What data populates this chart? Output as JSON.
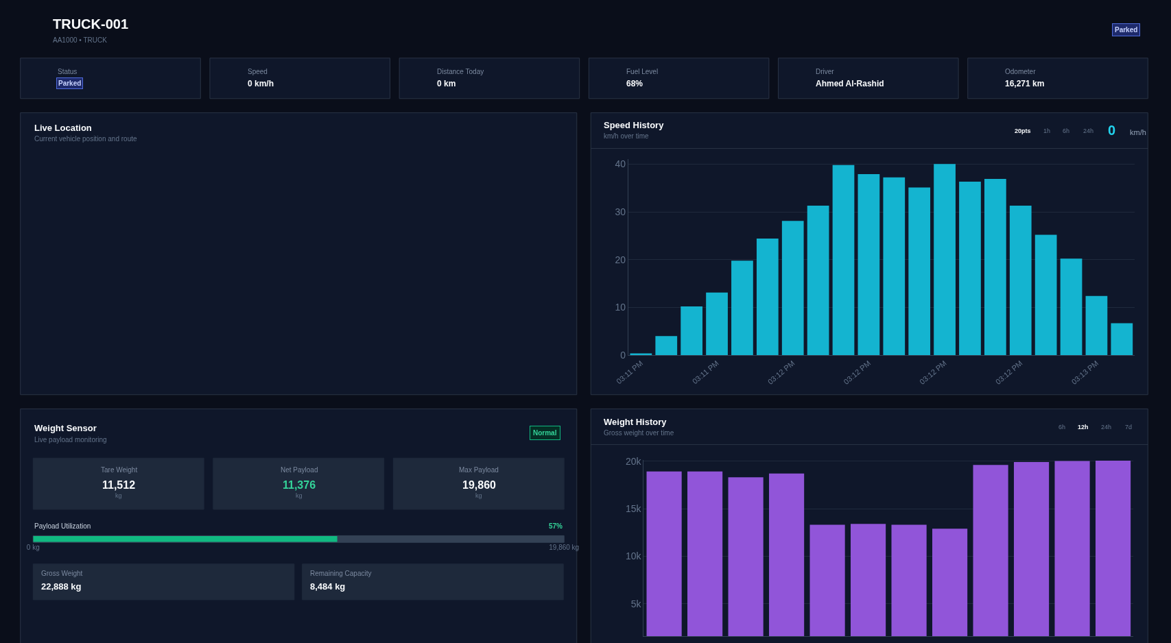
{
  "chart_data": [
    {
      "type": "other",
      "title": "TRUCK-001",
      "subtitle": "AA1000 • TRUCK",
      "annotations": [
        "Parked"
      ]
    },
    {
      "type": "other",
      "annotations": [
        "Status",
        "Parked",
        "Speed",
        "0 km/h",
        "Distance Today",
        "0 km",
        "Fuel Level",
        "68%",
        "Driver",
        "Ahmed Al-Rashid",
        "Odometer",
        "16,271 km"
      ]
    },
    {
      "type": "other",
      "title": "Live Location",
      "subtitle": "Current vehicle position and route"
    },
    {
      "type": "bar",
      "title": "Speed History",
      "subtitle": "km/h over time",
      "annotations": [
        "20pts",
        "1h",
        "6h",
        "24h",
        "0",
        "km/h"
      ],
      "categories": [
        "03:11 PM",
        null,
        null,
        "03:11 PM",
        null,
        null,
        "03:12 PM",
        null,
        null,
        "03:12 PM",
        null,
        null,
        "03:12 PM",
        null,
        null,
        "03:12 PM",
        null,
        null,
        "03:13 PM",
        null
      ],
      "values": [
        0.4,
        4.0,
        10.2,
        13.1,
        19.8,
        24.4,
        28.1,
        31.3,
        39.8,
        37.9,
        37.2,
        35.1,
        40.0,
        36.3,
        36.9,
        31.3,
        25.2,
        20.2,
        12.4,
        6.7
      ],
      "color": "#14b4d0",
      "ylim": [
        0,
        41
      ],
      "yticks": [
        0,
        10,
        20,
        30,
        40
      ],
      "grid": "y"
    },
    {
      "type": "other",
      "title": "Weight Sensor",
      "subtitle": "Live payload monitoring",
      "annotations": [
        "Normal",
        "Tare Weight",
        "11,512",
        "kg",
        "Net Payload",
        "11,376",
        "kg",
        "Max Payload",
        "19,860",
        "kg",
        "Gross Weight",
        "22,888 kg",
        "Remaining Capacity",
        "8,484 kg"
      ]
    },
    {
      "type": "bar",
      "orientation": "horizontal",
      "title": "Payload Utilization",
      "annotations": [
        "57%"
      ],
      "categories": [
        null
      ],
      "values": [
        11376
      ],
      "color": "#10b981",
      "xlim": [
        0,
        19860
      ],
      "xticks": [
        {
          "value": 0,
          "label": "0 kg"
        },
        {
          "value": 19860,
          "label": "19,860 kg"
        }
      ]
    },
    {
      "type": "bar",
      "title": "Weight History",
      "subtitle": "Gross weight over time",
      "annotations": [
        "6h",
        "12h",
        "24h",
        "7d"
      ],
      "categories": [
        null,
        null,
        null,
        null,
        null,
        null,
        null,
        null,
        null,
        null,
        null,
        null
      ],
      "values": [
        18900,
        18900,
        18300,
        18700,
        13300,
        13400,
        13300,
        12900,
        19600,
        19900,
        20000,
        20050
      ],
      "color": "#9155d9",
      "ylim": [
        1600,
        20100
      ],
      "yticks": [
        {
          "value": 5000,
          "label": "5k"
        },
        {
          "value": 10000,
          "label": "10k"
        },
        {
          "value": 15000,
          "label": "15k"
        },
        {
          "value": 20000,
          "label": "20k"
        }
      ],
      "grid": "y"
    }
  ]
}
